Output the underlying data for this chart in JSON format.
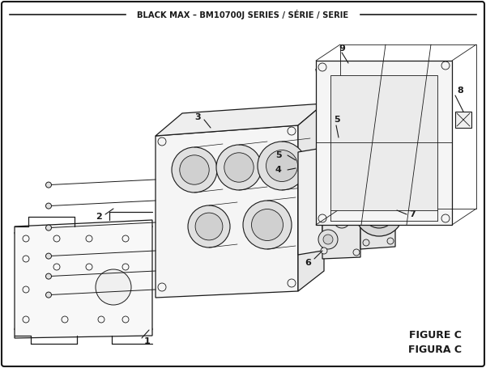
{
  "title": "BLACK MAX – BM10700J SERIES / SÉRIE / SERIE",
  "figure_label": "FIGURE C",
  "figura_label": "FIGURA C",
  "bg_color": "#ffffff",
  "border_color": "#1a1a1a",
  "line_color": "#1a1a1a"
}
